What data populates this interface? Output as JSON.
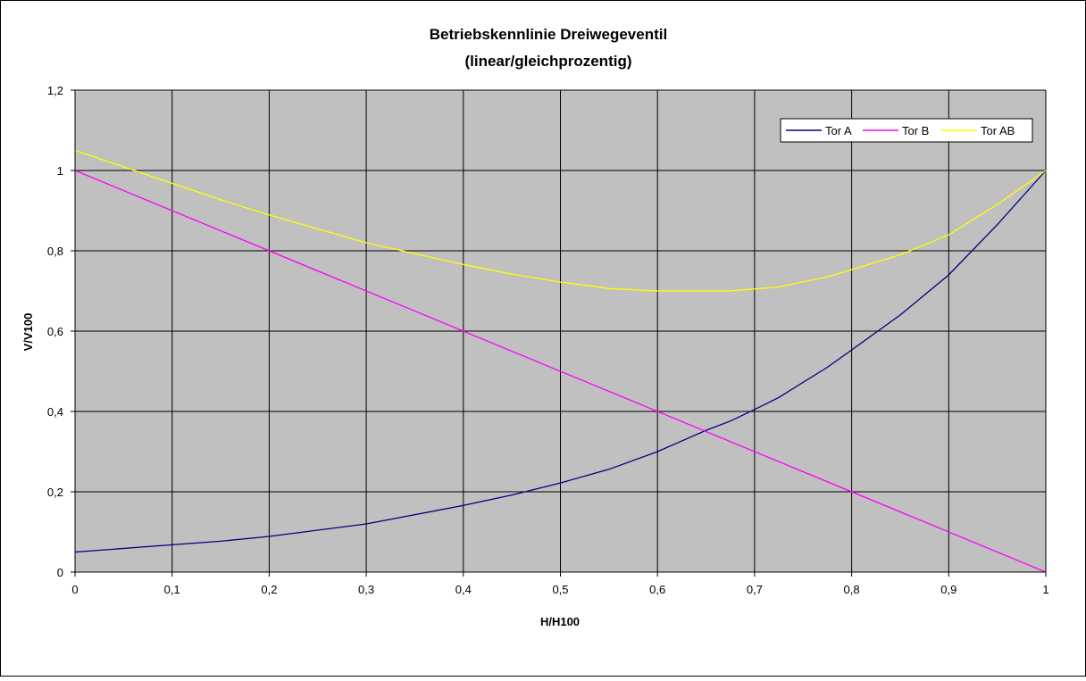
{
  "chart_data": {
    "type": "line",
    "title": "Betriebskennlinie Dreiwegeventil",
    "subtitle": "(linear/gleichprozentig)",
    "xlabel": "H/H100",
    "ylabel": "V/V100",
    "xlim": [
      0,
      1
    ],
    "ylim": [
      0,
      1.2
    ],
    "x_ticks": [
      "0",
      "0,1",
      "0,2",
      "0,3",
      "0,4",
      "0,5",
      "0,6",
      "0,7",
      "0,8",
      "0,9",
      "1"
    ],
    "y_ticks": [
      "0",
      "0,2",
      "0,4",
      "0,6",
      "0,8",
      "1",
      "1,2"
    ],
    "grid": true,
    "legend_position": "top-right",
    "plot_background": "#c0c0c0",
    "series": [
      {
        "name": "Tor A",
        "color": "#000080",
        "x": [
          0,
          0.1,
          0.15,
          0.2,
          0.3,
          0.4,
          0.45,
          0.5,
          0.55,
          0.6,
          0.65,
          0.675,
          0.7,
          0.725,
          0.775,
          0.8,
          0.85,
          0.875,
          0.9,
          0.95,
          1
        ],
        "y": [
          0.05,
          0.068,
          0.077,
          0.089,
          0.12,
          0.166,
          0.192,
          0.222,
          0.256,
          0.3,
          0.353,
          0.376,
          0.405,
          0.435,
          0.51,
          0.553,
          0.64,
          0.69,
          0.74,
          0.865,
          1
        ]
      },
      {
        "name": "Tor B",
        "color": "#ff00ff",
        "x": [
          0,
          1
        ],
        "y": [
          1,
          0
        ]
      },
      {
        "name": "Tor AB",
        "color": "#ffff00",
        "x": [
          0,
          0.1,
          0.15,
          0.2,
          0.3,
          0.4,
          0.45,
          0.5,
          0.55,
          0.6,
          0.65,
          0.675,
          0.7,
          0.725,
          0.775,
          0.8,
          0.85,
          0.875,
          0.9,
          0.95,
          1
        ],
        "y": [
          1.05,
          0.968,
          0.927,
          0.889,
          0.82,
          0.766,
          0.742,
          0.722,
          0.706,
          0.7,
          0.7,
          0.7,
          0.705,
          0.71,
          0.735,
          0.753,
          0.79,
          0.815,
          0.84,
          0.915,
          1
        ]
      }
    ]
  }
}
